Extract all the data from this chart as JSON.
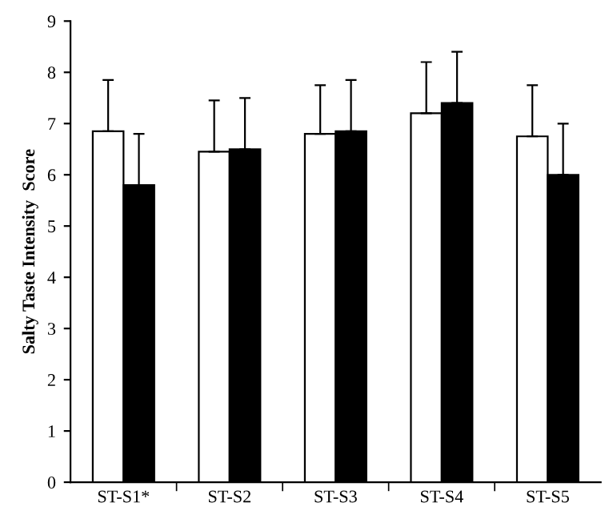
{
  "chart_data": {
    "type": "bar",
    "ylabel": "Salty Taste Intensity  Score",
    "categories": [
      "ST-S1*",
      "ST-S2",
      "ST-S3",
      "ST-S4",
      "ST-S5"
    ],
    "series": [
      {
        "color": "#ffffff",
        "values": [
          6.85,
          6.45,
          6.8,
          7.2,
          6.75
        ],
        "errors": [
          [
            6.85,
            7.85
          ],
          [
            6.45,
            7.45
          ],
          [
            6.8,
            7.75
          ],
          [
            7.2,
            8.2
          ],
          [
            6.75,
            7.75
          ]
        ]
      },
      {
        "color": "#000000",
        "values": [
          5.8,
          6.5,
          6.85,
          7.4,
          6.0
        ],
        "errors": [
          [
            5.8,
            6.8
          ],
          [
            6.5,
            7.5
          ],
          [
            6.85,
            7.85
          ],
          [
            7.4,
            8.4
          ],
          [
            6.0,
            7.0
          ]
        ]
      }
    ],
    "ylim": [
      0,
      9
    ],
    "yticks": [
      0,
      1,
      2,
      3,
      4,
      5,
      6,
      7,
      8,
      9
    ],
    "grid": false,
    "legend": false
  }
}
